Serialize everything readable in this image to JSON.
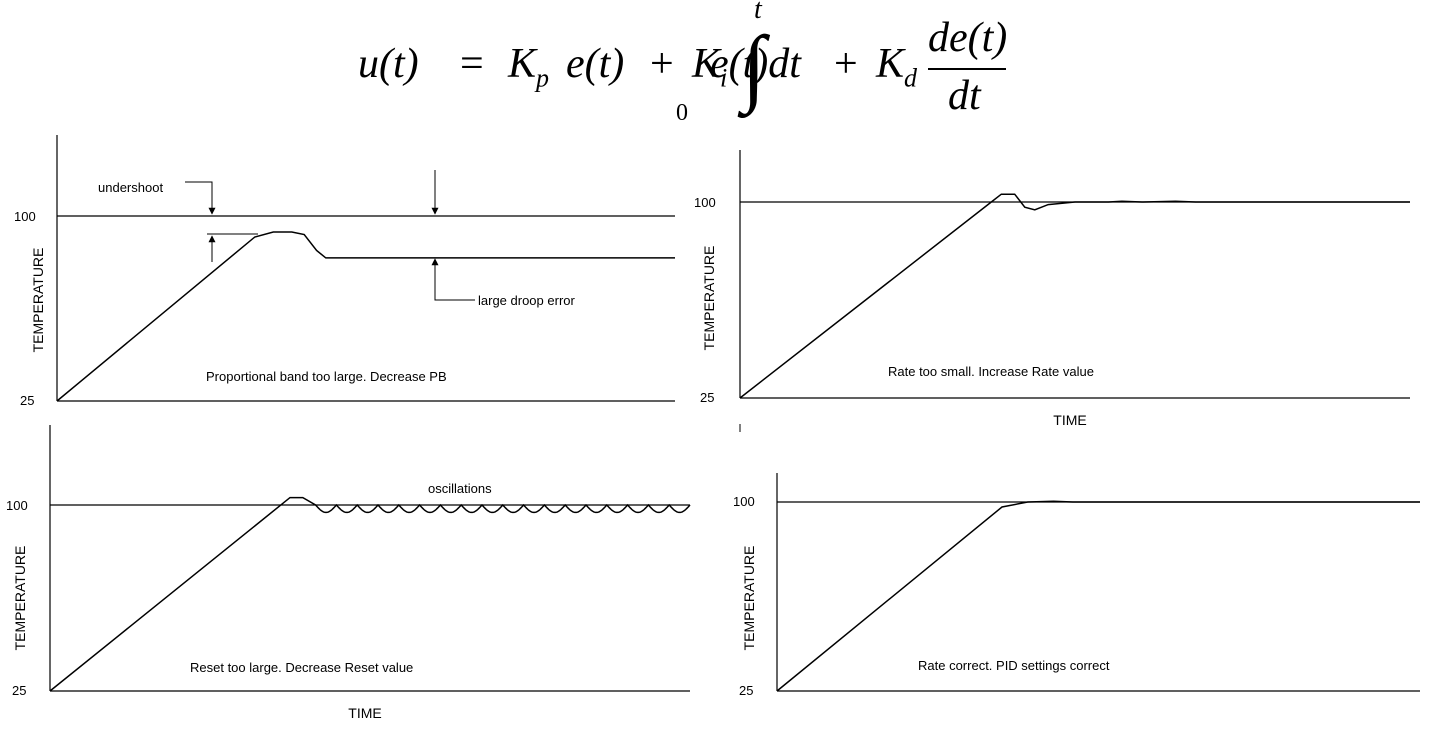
{
  "equation": {
    "lhs": "u(t)",
    "equals": "=",
    "kp_symbol": "K",
    "kp_sub": "p",
    "term1": "e(t)",
    "plus": "+",
    "ki_symbol": "K",
    "ki_sub": "i",
    "integral_sign": "∫",
    "upper_limit": "t",
    "lower_limit": "0",
    "integrand": "e(t)dt",
    "kd_symbol": "K",
    "kd_sub": "d",
    "numerator": "de(t)",
    "denominator": "dt"
  },
  "colors": {
    "line": "#000000",
    "background": "#ffffff"
  },
  "chart_data": [
    {
      "type": "line",
      "id": "panel-top-left",
      "ylabel": "TEMPERATURE",
      "xlabel": "",
      "yticks": [
        "100",
        "25"
      ],
      "ylim": [
        25,
        125
      ],
      "xlim": [
        0,
        10
      ],
      "reference": 100,
      "series": [
        {
          "x": [
            0,
            3.2,
            3.5,
            3.8,
            4.0,
            4.2,
            4.35,
            4.6,
            10
          ],
          "y": [
            25,
            91.5,
            93.5,
            93.5,
            92.5,
            86,
            83,
            83,
            83
          ]
        }
      ],
      "annotations": {
        "undershoot": "undershoot",
        "droop": "large droop error",
        "caption": "Proportional band too large. Decrease PB"
      }
    },
    {
      "type": "line",
      "id": "panel-top-right",
      "ylabel": "TEMPERATURE",
      "xlabel": "TIME",
      "yticks": [
        "100",
        "25"
      ],
      "ylim": [
        25,
        125
      ],
      "xlim": [
        0,
        10
      ],
      "reference": 100,
      "series": [
        {
          "x": [
            0,
            3.75,
            3.9,
            4.1,
            4.25,
            4.4,
            4.6,
            5.0,
            5.5,
            5.7,
            6.0,
            6.5,
            6.8,
            10
          ],
          "y": [
            25,
            100,
            103,
            103,
            98,
            97,
            99,
            100,
            100,
            100.3,
            100,
            100.3,
            100,
            100
          ]
        }
      ],
      "annotations": {
        "caption": "Rate too small. Increase Rate value"
      }
    },
    {
      "type": "line",
      "id": "panel-bottom-left",
      "ylabel": "TEMPERATURE",
      "xlabel": "TIME",
      "yticks": [
        "100",
        "25"
      ],
      "ylim": [
        25,
        125
      ],
      "xlim": [
        0,
        10
      ],
      "reference": 100,
      "series": [
        {
          "x": [
            0,
            3.75,
            3.95,
            4.15
          ],
          "y": [
            25,
            103,
            103,
            100
          ]
        }
      ],
      "oscillation": {
        "x_start": 4.15,
        "x_end": 10,
        "cycles": 18,
        "amplitude": 3,
        "center": 100
      },
      "annotations": {
        "oscillations": "oscillations",
        "caption": "Reset too large. Decrease Reset value"
      }
    },
    {
      "type": "line",
      "id": "panel-bottom-right",
      "ylabel": "TEMPERATURE",
      "xlabel": "",
      "yticks": [
        "100",
        "25"
      ],
      "ylim": [
        25,
        125
      ],
      "xlim": [
        0,
        10
      ],
      "reference": 100,
      "series": [
        {
          "x": [
            0,
            3.5,
            3.9,
            4.3,
            4.6,
            10
          ],
          "y": [
            25,
            98,
            100,
            100.3,
            100,
            100
          ]
        }
      ],
      "annotations": {
        "caption": "Rate correct. PID settings correct"
      }
    }
  ]
}
